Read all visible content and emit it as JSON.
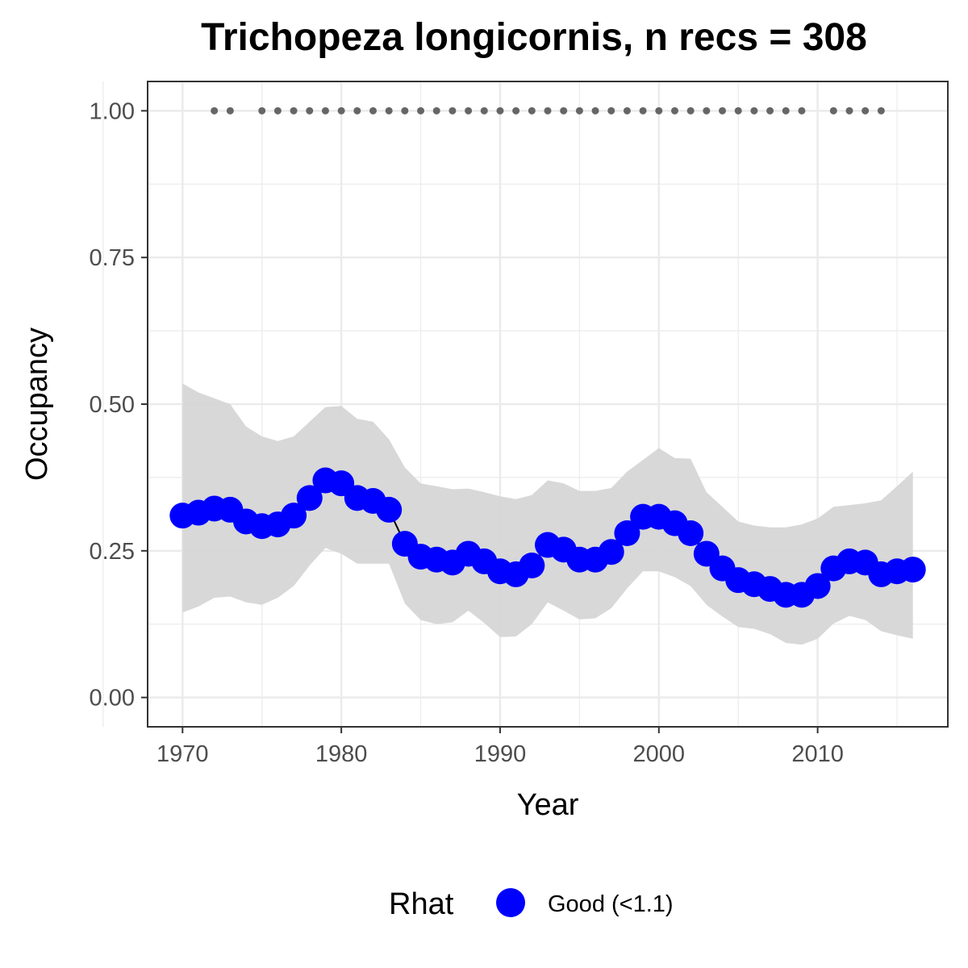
{
  "chart_data": {
    "type": "line",
    "title": "Trichopeza longicornis, n recs = 308",
    "xlabel": "Year",
    "ylabel": "Occupancy",
    "xlim": [
      1967.8,
      2018.2
    ],
    "ylim": [
      -0.05,
      1.05
    ],
    "x_ticks": [
      1970,
      1980,
      1990,
      2000,
      2010
    ],
    "x_tick_labels": [
      "1970",
      "1980",
      "1990",
      "2000",
      "2010"
    ],
    "y_ticks": [
      0,
      0.25,
      0.5,
      0.75,
      1.0
    ],
    "y_tick_labels": [
      "0.00",
      "0.25",
      "0.50",
      "0.75",
      "1.00"
    ],
    "grid": true,
    "series": [
      {
        "rhat": "Good (<1.1)",
        "color": "#0000ff",
        "x": [
          1970,
          1971,
          1972,
          1973,
          1974,
          1975,
          1976,
          1977,
          1978,
          1979,
          1980,
          1981,
          1982,
          1983,
          1984,
          1985,
          1986,
          1987,
          1988,
          1989,
          1990,
          1991,
          1992,
          1993,
          1994,
          1995,
          1996,
          1997,
          1998,
          1999,
          2000,
          2001,
          2002,
          2003,
          2004,
          2005,
          2006,
          2007,
          2008,
          2009,
          2010,
          2011,
          2012,
          2013,
          2014,
          2015,
          2016
        ],
        "y": [
          0.31,
          0.315,
          0.322,
          0.32,
          0.3,
          0.292,
          0.295,
          0.31,
          0.34,
          0.37,
          0.365,
          0.34,
          0.335,
          0.32,
          0.262,
          0.24,
          0.235,
          0.23,
          0.245,
          0.232,
          0.215,
          0.21,
          0.225,
          0.26,
          0.252,
          0.235,
          0.235,
          0.248,
          0.28,
          0.308,
          0.308,
          0.297,
          0.28,
          0.245,
          0.22,
          0.2,
          0.193,
          0.185,
          0.175,
          0.175,
          0.19,
          0.22,
          0.232,
          0.23,
          0.21,
          0.215,
          0.218
        ],
        "lower": [
          0.145,
          0.155,
          0.17,
          0.172,
          0.162,
          0.158,
          0.17,
          0.19,
          0.225,
          0.255,
          0.245,
          0.228,
          0.228,
          0.228,
          0.16,
          0.132,
          0.125,
          0.128,
          0.148,
          0.127,
          0.103,
          0.104,
          0.125,
          0.162,
          0.148,
          0.133,
          0.135,
          0.152,
          0.186,
          0.215,
          0.215,
          0.205,
          0.19,
          0.158,
          0.138,
          0.12,
          0.117,
          0.108,
          0.093,
          0.09,
          0.1,
          0.126,
          0.139,
          0.132,
          0.113,
          0.106,
          0.1
        ],
        "upper": [
          0.535,
          0.52,
          0.51,
          0.5,
          0.462,
          0.445,
          0.437,
          0.445,
          0.47,
          0.495,
          0.497,
          0.475,
          0.47,
          0.44,
          0.392,
          0.365,
          0.36,
          0.355,
          0.356,
          0.35,
          0.343,
          0.338,
          0.345,
          0.37,
          0.365,
          0.352,
          0.352,
          0.357,
          0.385,
          0.405,
          0.425,
          0.408,
          0.407,
          0.35,
          0.325,
          0.3,
          0.293,
          0.29,
          0.29,
          0.295,
          0.305,
          0.325,
          0.328,
          0.331,
          0.336,
          0.36,
          0.385
        ]
      }
    ],
    "record_years": [
      1972,
      1973,
      1975,
      1976,
      1977,
      1978,
      1979,
      1980,
      1981,
      1982,
      1983,
      1984,
      1985,
      1986,
      1987,
      1988,
      1989,
      1990,
      1991,
      1992,
      1993,
      1994,
      1995,
      1996,
      1997,
      1998,
      1999,
      2000,
      2001,
      2002,
      2003,
      2004,
      2005,
      2006,
      2007,
      2008,
      2009,
      2011,
      2012,
      2013,
      2014
    ],
    "record_y": 1.0,
    "record_color": "#666666",
    "ribbon_color": "#d6d6d6",
    "legend": {
      "title": "Rhat",
      "label": "Good (<1.1)",
      "position": "bottom"
    }
  }
}
